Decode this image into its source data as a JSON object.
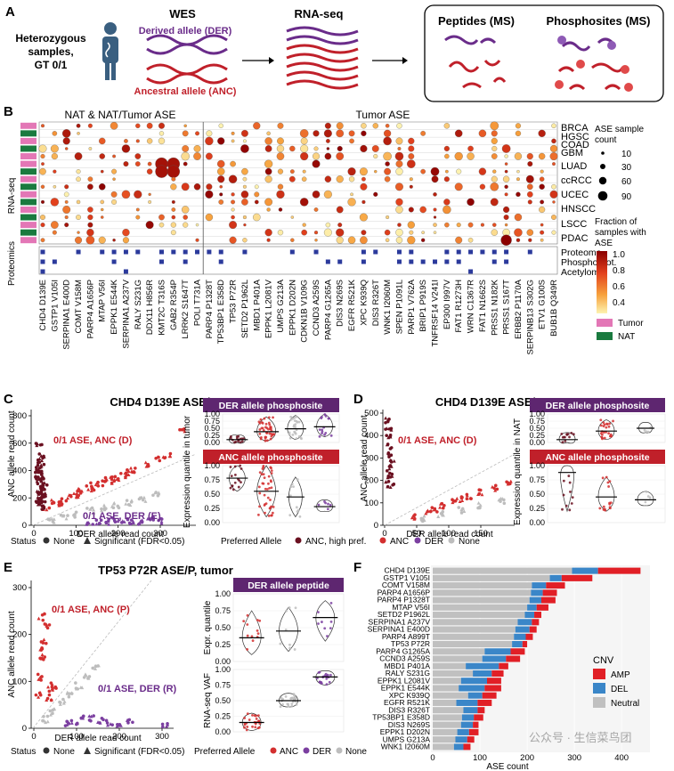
{
  "panelA": {
    "letter": "A",
    "heterozygous": [
      "Heterozygous",
      "samples,",
      "GT 0/1"
    ],
    "wes": "WES",
    "der": "Derived allele (DER)",
    "anc": "Ancestral allele (ANC)",
    "rnaseq": "RNA-seq",
    "peptides": "Peptides (MS)",
    "phospho": "Phosphosites (MS)",
    "phospho_letter": "P"
  },
  "panelB": {
    "letter": "B",
    "header_left": "NAT & NAT/Tumor ASE",
    "header_right": "Tumor ASE",
    "side_rnaseq": "RNA-seq",
    "side_prot": "Proteomics",
    "cancers": [
      "BRCA",
      "HGSC",
      "COAD",
      "GBM",
      "LUAD",
      "ccRCC",
      "UCEC",
      "HNSCC",
      "LSCC",
      "PDAC"
    ],
    "prot_rows": [
      "Proteome",
      "Phosphoprot.",
      "Acetylome"
    ],
    "genes": [
      "CHD4 D139E",
      "GSTP1 V105I",
      "SERPINA1 E400D",
      "COMT V158M",
      "PARP4 A1656P",
      "MTAP V56I",
      "EPPK1 E544K",
      "SERPINA1 A237V",
      "RALY S231G",
      "DDX11 H856R",
      "KMT2C T316S",
      "GAB2 R354P",
      "LRRK2 S1647T",
      "POLI T731A",
      "PARP4 P1328T",
      "TP53BP1 E358D",
      "TP53 P72R",
      "SETD2 P1962L",
      "MBD1 P401A",
      "EPPK1 L2081V",
      "UMPS G213A",
      "EPPK1 D202N",
      "CDKN1B V109G",
      "CCND3 A259S",
      "PARP4 G1265A",
      "DIS3 N269S",
      "EGFR R521K",
      "XPC K939Q",
      "DIS3 R326T",
      "WNK1 I2060M",
      "SPEN P1091L",
      "PARP1 V762A",
      "BRIP1 P919S",
      "TNFRSF14 V241I",
      "EP300 I997V",
      "FAT1 R1273H",
      "WRN C1367R",
      "FAT1 N1662S",
      "PRSS1 N182K",
      "PRSS1 S167T",
      "ERBB2 P1170A",
      "SERPINB13 S302G",
      "ETV1 G100S",
      "BUB1B Q349R"
    ],
    "legend_size_title": [
      "ASE sample",
      "count"
    ],
    "legend_sizes": [
      "10",
      "30",
      "60",
      "90"
    ],
    "legend_color_title": [
      "Fraction of",
      "samples with",
      "ASE"
    ],
    "legend_color_ticks": [
      "1.0",
      "0.8",
      "0.6",
      "0.4"
    ],
    "legend_tumor": "Tumor",
    "legend_nat": "NAT",
    "color_tumor": "#e377b6",
    "color_nat": "#1a7a3f",
    "color_marker": "#2b3a9c"
  },
  "panelC": {
    "letter": "C",
    "title": "CHD4 D139E ASE/P, tumor",
    "ylabel": "ANC allele read count",
    "xlabel": "DER allele read count",
    "yticks": [
      "0",
      "200",
      "400",
      "600",
      "800"
    ],
    "xticks": [
      "0",
      "100",
      "200",
      "300"
    ],
    "label_anc": "0/1 ASE, ANC (D)",
    "label_der": "0/1 ASE, DER (E)",
    "violin_top_title": "DER allele phosphosite",
    "violin_bottom_title": "ANC allele phosphosite",
    "violin_ylabel": "Expression quantile in tumor",
    "vticks": [
      "0.00",
      "0.25",
      "0.50",
      "0.75",
      "1.00"
    ],
    "status_title": "Status",
    "status_none": "None",
    "status_sig": "Significant (FDR<0.05)",
    "pref_title": "Preferred Allele",
    "pref_anc_high": "ANC, high pref.",
    "pref_anc": "ANC",
    "pref_der": "DER",
    "pref_none": "None"
  },
  "panelD": {
    "letter": "D",
    "title": "CHD4 D139E ASE/P, NAT",
    "ylabel": "ANC allele read count",
    "xlabel": "DER allele read count",
    "yticks": [
      "0",
      "100",
      "200",
      "300",
      "400",
      "500"
    ],
    "xticks": [
      "0",
      "50",
      "100",
      "150"
    ],
    "label_anc": "0/1 ASE, ANC (D)",
    "violin_top_title": "DER allele phosphosite",
    "violin_bottom_title": "ANC allele phosphosite",
    "violin_ylabel": "Expression quantile in NAT",
    "vticks": [
      "0.00",
      "0.25",
      "0.50",
      "0.75",
      "1.00"
    ]
  },
  "panelE": {
    "letter": "E",
    "title": "TP53 P72R ASE/P, tumor",
    "ylabel": "ANC allele read count",
    "xlabel": "DER allele read count",
    "yticks": [
      "0",
      "100",
      "200",
      "300"
    ],
    "xticks": [
      "0",
      "100",
      "200",
      "300"
    ],
    "label_anc": "0/1 ASE, ANC (P)",
    "label_der": "0/1 ASE, DER (R)",
    "violin_title": "DER allele peptide",
    "violin_ylabel_top": "Expr. quantile",
    "violin_ylabel_bottom": "RNA-seq VAF",
    "vticks": [
      "0.00",
      "0.25",
      "0.50",
      "0.75",
      "1.00"
    ],
    "status_title": "Status",
    "status_none": "None",
    "status_sig": "Significant (FDR<0.05)",
    "pref_title": "Preferred Allele",
    "pref_anc": "ANC",
    "pref_der": "DER",
    "pref_none": "None"
  },
  "panelF": {
    "letter": "F",
    "xlabel": "ASE count",
    "xticks": [
      "0",
      "100",
      "200",
      "300",
      "400"
    ],
    "legend_title": "CNV",
    "legend_amp": "AMP",
    "legend_del": "DEL",
    "legend_neutral": "Neutral",
    "color_amp": "#e11f26",
    "color_del": "#3a86c8",
    "color_neutral": "#c0c0c0",
    "watermark": "公众号 · 生信菜鸟团"
  },
  "chart_data": [
    {
      "type": "bar",
      "orientation": "horizontal",
      "stacked": true,
      "categories": [
        "CHD4 D139E",
        "GSTP1 V105I",
        "COMT V158M",
        "PARP4 A1656P",
        "PARP4 P1328T",
        "MTAP V56I",
        "SETD2 P1962L",
        "SERPINA1 A237V",
        "SERPINA1 E400D",
        "PARP4 A899T",
        "TP53 P72R",
        "PARP4 G1265A",
        "CCND3 A259S",
        "MBD1 P401A",
        "RALY S231G",
        "EPPK1 L2081V",
        "EPPK1 E544K",
        "XPC K939Q",
        "EGFR R521K",
        "DIS3 R326T",
        "TP53BP1 E358D",
        "DIS3 N269S",
        "EPPK1 D202N",
        "UMPS G213A",
        "WNK1 I2060M"
      ],
      "series": [
        {
          "name": "Neutral",
          "values": [
            295,
            248,
            210,
            208,
            205,
            200,
            195,
            180,
            175,
            172,
            168,
            110,
            105,
            70,
            85,
            60,
            55,
            75,
            50,
            65,
            62,
            60,
            52,
            48,
            45
          ]
        },
        {
          "name": "DEL",
          "values": [
            55,
            25,
            30,
            25,
            25,
            20,
            20,
            30,
            30,
            25,
            22,
            55,
            50,
            70,
            40,
            55,
            55,
            30,
            45,
            30,
            25,
            25,
            25,
            25,
            20
          ]
        },
        {
          "name": "AMP",
          "values": [
            90,
            65,
            40,
            30,
            30,
            25,
            15,
            15,
            15,
            15,
            10,
            30,
            30,
            20,
            25,
            30,
            35,
            30,
            30,
            15,
            20,
            12,
            20,
            15,
            15
          ]
        }
      ],
      "xlabel": "ASE count",
      "xlim": [
        0,
        460
      ]
    },
    {
      "type": "scatter",
      "title": "CHD4 D139E ASE/P, tumor",
      "xlabel": "DER allele read count",
      "ylabel": "ANC allele read count",
      "xlim": [
        -10,
        360
      ],
      "ylim": [
        0,
        860
      ],
      "series": [
        {
          "name": "ANC, high pref.",
          "x": [
            0,
            2,
            3,
            5,
            4,
            6,
            8,
            2,
            7,
            9,
            3,
            5,
            10,
            12,
            4,
            6,
            2,
            8,
            11,
            15
          ],
          "y": [
            420,
            380,
            350,
            300,
            260,
            230,
            200,
            180,
            160,
            140,
            480,
            520,
            330,
            290,
            410,
            450,
            600,
            250,
            190,
            220
          ]
        },
        {
          "name": "ANC",
          "x": [
            20,
            40,
            60,
            80,
            100,
            120,
            140,
            160,
            180,
            200,
            220,
            250,
            280,
            300,
            330,
            50,
            90,
            130,
            170,
            210
          ],
          "y": [
            120,
            180,
            200,
            220,
            260,
            280,
            320,
            350,
            360,
            400,
            420,
            460,
            500,
            520,
            720,
            160,
            230,
            300,
            330,
            380
          ]
        },
        {
          "name": "DER",
          "x": [
            120,
            140,
            160,
            180,
            200,
            220,
            240,
            260,
            280
          ],
          "y": [
            20,
            30,
            25,
            35,
            40,
            30,
            20,
            45,
            35
          ]
        },
        {
          "name": "None",
          "x": [
            30,
            60,
            90,
            120,
            150,
            180,
            210,
            240,
            270
          ],
          "y": [
            30,
            60,
            80,
            110,
            130,
            150,
            170,
            200,
            230
          ]
        }
      ]
    },
    {
      "type": "scatter",
      "title": "CHD4 D139E ASE/P, NAT",
      "xlabel": "DER allele read count",
      "ylabel": "ANC allele read count",
      "xlim": [
        -5,
        190
      ],
      "ylim": [
        0,
        520
      ],
      "series": [
        {
          "name": "ANC, high pref.",
          "x": [
            0,
            1,
            2,
            3,
            4,
            5,
            2,
            3,
            1,
            4
          ],
          "y": [
            480,
            440,
            400,
            360,
            320,
            300,
            260,
            230,
            210,
            180
          ]
        },
        {
          "name": "ANC",
          "x": [
            40,
            60,
            80,
            100,
            120,
            140,
            160,
            180,
            70,
            110
          ],
          "y": [
            40,
            60,
            90,
            110,
            130,
            150,
            170,
            190,
            70,
            120
          ]
        },
        {
          "name": "None",
          "x": [
            50,
            80,
            110,
            140,
            170
          ],
          "y": [
            30,
            50,
            70,
            90,
            110
          ]
        }
      ]
    },
    {
      "type": "scatter",
      "title": "TP53 P72R ASE/P, tumor",
      "xlabel": "DER allele read count",
      "ylabel": "ANC allele read count",
      "xlim": [
        -5,
        320
      ],
      "ylim": [
        0,
        340
      ],
      "series": [
        {
          "name": "ANC",
          "x": [
            5,
            10,
            15,
            20,
            25,
            30,
            35,
            40,
            8,
            12
          ],
          "y": [
            80,
            120,
            160,
            200,
            240,
            70,
            90,
            100,
            180,
            260
          ]
        },
        {
          "name": "DER",
          "x": [
            70,
            90,
            110,
            130,
            150,
            170,
            190,
            220,
            300
          ],
          "y": [
            10,
            15,
            20,
            25,
            20,
            15,
            10,
            18,
            5
          ]
        },
        {
          "name": "None",
          "x": [
            20,
            40,
            60,
            80,
            100,
            120,
            140
          ],
          "y": [
            20,
            40,
            60,
            80,
            100,
            120,
            140
          ]
        }
      ]
    }
  ]
}
